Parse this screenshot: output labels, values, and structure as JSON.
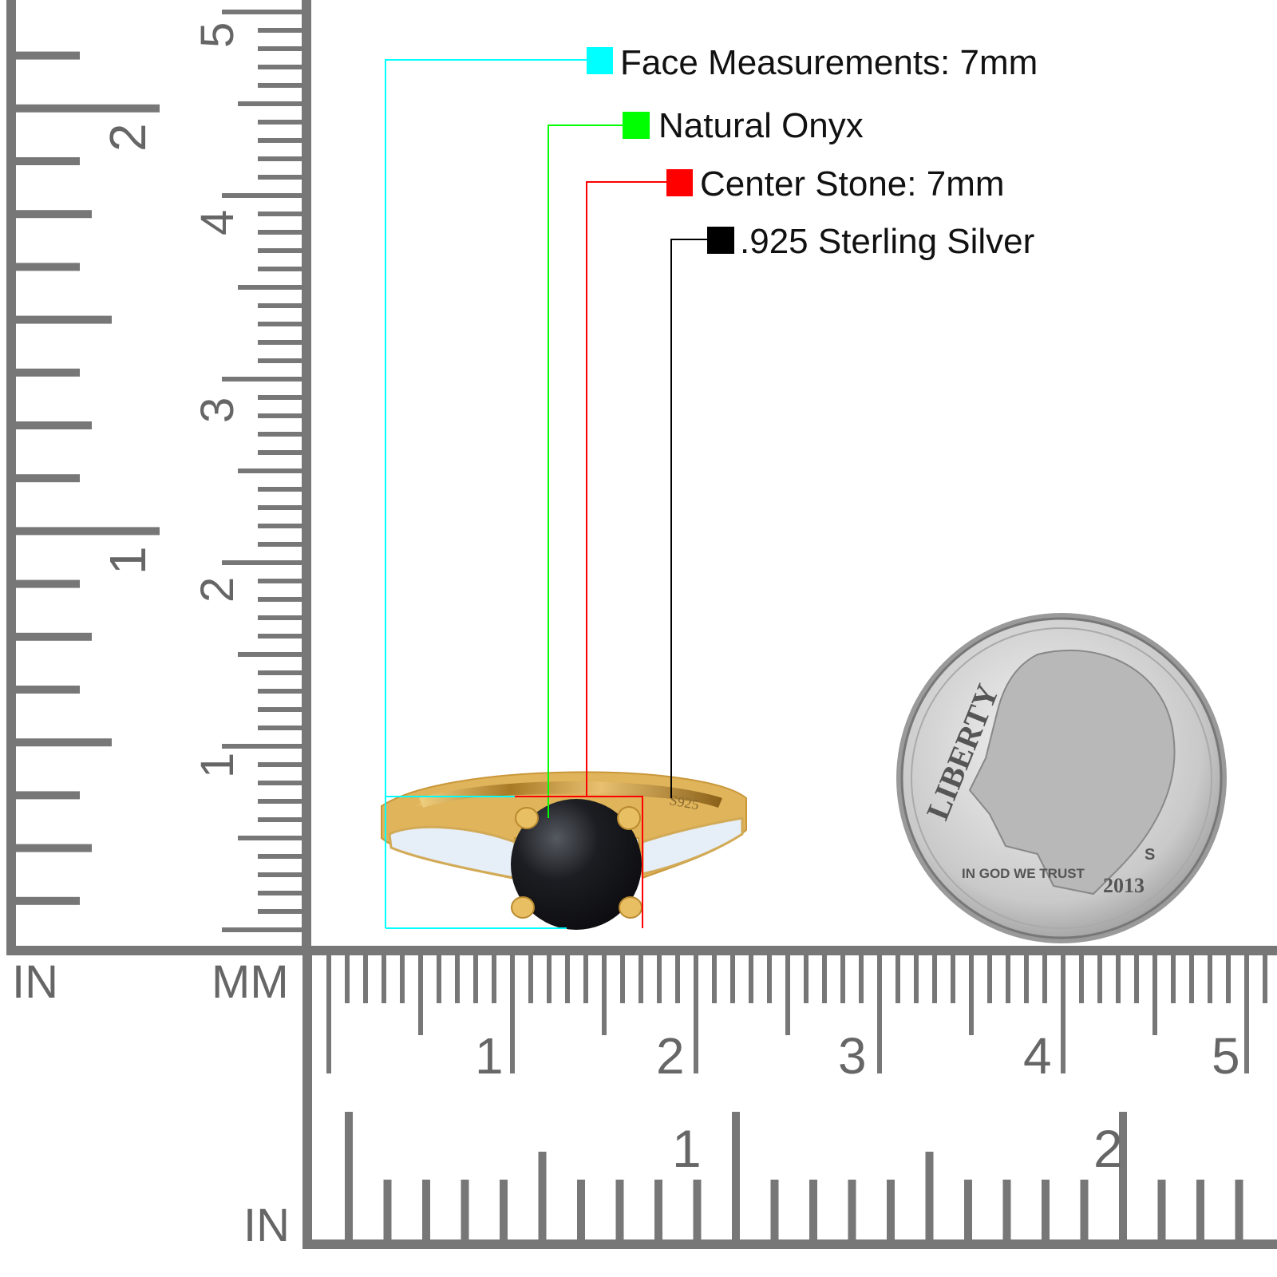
{
  "annotations": [
    {
      "label": "Face Measurements: 7mm",
      "color": "#00ffff"
    },
    {
      "label": "Natural Onyx",
      "color": "#00ff00"
    },
    {
      "label": "Center Stone: 7mm",
      "color": "#ff0000"
    },
    {
      "label": ".925 Sterling Silver",
      "color": "#000000"
    }
  ],
  "rulers": {
    "left_inch_unit": "IN",
    "left_mm_unit": "MM",
    "bottom_inch_unit": "IN",
    "left_inch_labels": [
      "1",
      "2"
    ],
    "left_cm_labels": [
      "1",
      "2",
      "3",
      "4",
      "5"
    ],
    "bottom_cm_labels": [
      "1",
      "2",
      "3",
      "4",
      "5"
    ],
    "bottom_inch_labels": [
      "1",
      "2"
    ],
    "color": "#777777"
  },
  "ring": {
    "stamp": "S925",
    "metal_color": "#e0b45a",
    "stone_color": "#15161a"
  },
  "coin": {
    "legend": "LIBERTY",
    "motto": "IN GOD WE TRUST",
    "year": "2013",
    "mint_mark": "S"
  }
}
